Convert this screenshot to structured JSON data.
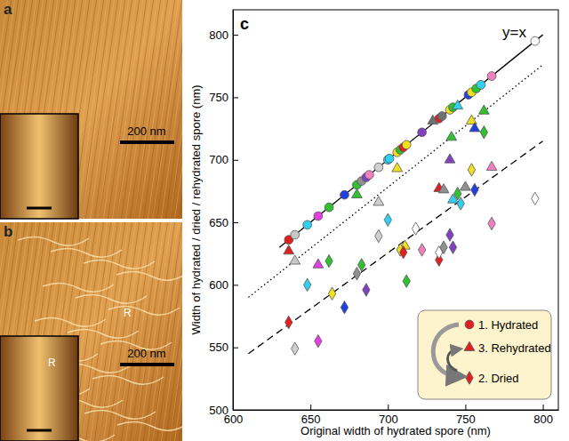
{
  "chart_data": {
    "type": "scatter",
    "title": "c",
    "annotations": [
      "y=x"
    ],
    "x_label": "Original width of hydrated spore (nm)",
    "y_label": "Width of hydrated / dried / rehydrated spore (nm)",
    "xlim": [
      600,
      810
    ],
    "xticks": [
      600,
      650,
      700,
      750,
      800
    ],
    "ylim": [
      500,
      820
    ],
    "yticks": [
      500,
      550,
      600,
      650,
      700,
      750,
      800
    ],
    "legend": "lower right",
    "series": [
      {
        "name": "1. Hydrated",
        "type": "scatter",
        "marker": "circle",
        "color": "#e02020",
        "x": [
          636,
          640,
          648,
          655,
          662,
          672,
          680,
          683,
          686,
          688,
          694,
          700,
          701,
          706,
          708,
          710,
          712,
          722,
          733,
          735,
          740,
          742,
          752,
          754,
          757,
          760,
          767,
          795
        ],
        "values": [
          636,
          640,
          648,
          655,
          662,
          672,
          680,
          683,
          686,
          688,
          694,
          700,
          701,
          706,
          708,
          710,
          712,
          722,
          733,
          735,
          740,
          742,
          752,
          754,
          757,
          760,
          767,
          795
        ],
        "colors": [
          "#e02020",
          "#c8c8c8",
          "#30d0f0",
          "#e040e0",
          "#30c030",
          "#2040e0",
          "#30c030",
          "#909090",
          "#8040c0",
          "#f080c0",
          "#d0d0d0",
          "#30d0f0",
          "#30d0f0",
          "#f0e020",
          "#30c030",
          "#e02020",
          "#f0e020",
          "#8040c0",
          "#e02020",
          "#707070",
          "#f0e020",
          "#30c030",
          "#2040e0",
          "#f0e020",
          "#30c030",
          "#30d0f0",
          "#f080c0",
          "#ffffff"
        ]
      },
      {
        "name": "3. Rehydrated",
        "type": "scatter",
        "marker": "triangle",
        "color": "#e02020",
        "x": [
          636,
          640,
          655,
          680,
          694,
          706,
          711,
          729,
          733,
          736,
          740,
          741,
          742,
          745,
          750,
          754,
          756,
          762,
          767
        ],
        "values": [
          627,
          619,
          616,
          672,
          666,
          693,
          631,
          731,
          677,
          676,
          700,
          718,
          668,
          743,
          678,
          731,
          725,
          739,
          694
        ],
        "colors": [
          "#e02020",
          "#c8c8c8",
          "#e040e0",
          "#30c030",
          "#d0d0d0",
          "#f0e020",
          "#f0e020",
          "#707070",
          "#e02020",
          "#909090",
          "#8040c0",
          "#30c030",
          "#30d0f0",
          "#30d0f0",
          "#909090",
          "#f0e020",
          "#2040e0",
          "#30c030",
          "#f080c0"
        ]
      },
      {
        "name": "2. Dried",
        "type": "scatter",
        "marker": "diamond",
        "color": "#e02020",
        "x": [
          636,
          640,
          648,
          655,
          662,
          664,
          672,
          680,
          683,
          686,
          694,
          700,
          708,
          710,
          712,
          718,
          722,
          733,
          733,
          736,
          740,
          742,
          745,
          747,
          754,
          756,
          762,
          767,
          795
        ],
        "values": [
          570,
          549,
          600,
          555,
          619,
          593,
          582,
          609,
          616,
          596,
          639,
          652,
          628,
          626,
          603,
          645,
          628,
          620,
          626,
          630,
          640,
          630,
          673,
          665,
          692,
          676,
          722,
          649,
          669
        ],
        "colors": [
          "#e02020",
          "#d0d0d0",
          "#30d0f0",
          "#e040e0",
          "#30c030",
          "#f0e020",
          "#2040e0",
          "#909090",
          "#30c030",
          "#8040c0",
          "#d0d0d0",
          "#30d0f0",
          "#f0e020",
          "#e02020",
          "#30c030",
          "#ffffff",
          "#f080c0",
          "#e02020",
          "#ffffff",
          "#909090",
          "#8040c0",
          "#8040c0",
          "#30c030",
          "#30d0f0",
          "#f0e020",
          "#2040e0",
          "#30c030",
          "#f080c0",
          "#ffffff"
        ]
      },
      {
        "type": "line",
        "line_style": "solid",
        "color": "#000000",
        "x": [
          630,
          800
        ],
        "values": [
          630,
          800
        ]
      },
      {
        "type": "line",
        "line_style": "dotted",
        "color": "#000000",
        "x": [
          610,
          800
        ],
        "values": [
          590,
          776
        ]
      },
      {
        "type": "line",
        "line_style": "dashed",
        "color": "#000000",
        "x": [
          610,
          800
        ],
        "values": [
          545,
          715
        ]
      }
    ]
  },
  "panels": [
    {
      "label": "a",
      "scale_bar": "200 nm"
    },
    {
      "label": "b",
      "scale_bar": "200 nm",
      "annotations": [
        "R",
        "R"
      ]
    }
  ]
}
